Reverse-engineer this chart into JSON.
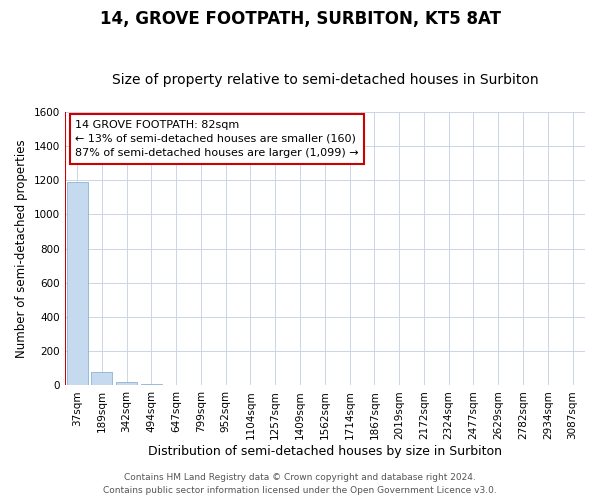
{
  "title": "14, GROVE FOOTPATH, SURBITON, KT5 8AT",
  "subtitle": "Size of property relative to semi-detached houses in Surbiton",
  "xlabel": "Distribution of semi-detached houses by size in Surbiton",
  "ylabel": "Number of semi-detached properties",
  "categories": [
    "37sqm",
    "189sqm",
    "342sqm",
    "494sqm",
    "647sqm",
    "799sqm",
    "952sqm",
    "1104sqm",
    "1257sqm",
    "1409sqm",
    "1562sqm",
    "1714sqm",
    "1867sqm",
    "2019sqm",
    "2172sqm",
    "2324sqm",
    "2477sqm",
    "2629sqm",
    "2782sqm",
    "2934sqm",
    "3087sqm"
  ],
  "values": [
    1190,
    80,
    18,
    5,
    3,
    2,
    1,
    1,
    1,
    1,
    1,
    1,
    1,
    1,
    1,
    1,
    1,
    1,
    1,
    1,
    1
  ],
  "bar_color": "#c5d9ef",
  "bar_edge_color": "#8ab4d4",
  "annotation_line_color": "#cc0000",
  "annotation_box_color": "#cc0000",
  "annotation_line1": "14 GROVE FOOTPATH: 82sqm",
  "annotation_line2": "← 13% of semi-detached houses are smaller (160)",
  "annotation_line3": "87% of semi-detached houses are larger (1,099) →",
  "red_line_x": -0.5,
  "ylim": [
    0,
    1600
  ],
  "yticks": [
    0,
    200,
    400,
    600,
    800,
    1000,
    1200,
    1400,
    1600
  ],
  "background_color": "#ffffff",
  "grid_color": "#ccd5e8",
  "footer1": "Contains HM Land Registry data © Crown copyright and database right 2024.",
  "footer2": "Contains public sector information licensed under the Open Government Licence v3.0.",
  "title_fontsize": 12,
  "subtitle_fontsize": 10,
  "xlabel_fontsize": 9,
  "ylabel_fontsize": 8.5,
  "tick_fontsize": 7.5,
  "annotation_fontsize": 8,
  "footer_fontsize": 6.5
}
